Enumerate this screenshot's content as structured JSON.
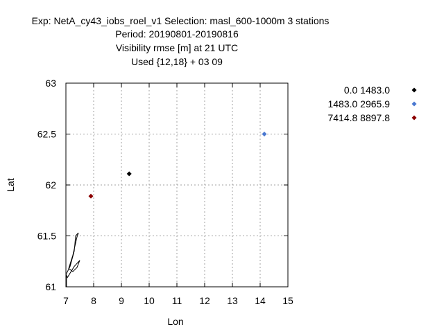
{
  "header": {
    "line1": "Exp: NetA_cy43_iobs_roel_v1   Selection: masl_600-1000m      3 stations",
    "line2": "Period: 20190801-20190816",
    "line3": "Visibility rmse [m] at  21 UTC",
    "line4": "Used {12,18} + 03 09"
  },
  "chart_data": {
    "type": "scatter",
    "title": "Visibility rmse [m] at  21 UTC",
    "xlabel": "Lon",
    "ylabel": "Lat",
    "xlim": [
      7,
      15
    ],
    "ylim": [
      61,
      63
    ],
    "xticks": [
      "7",
      "8",
      "9",
      "10",
      "11",
      "12",
      "13",
      "14",
      "15"
    ],
    "yticks": [
      "61",
      "61.5",
      "62",
      "62.5",
      "63"
    ],
    "grid": true,
    "legend_position": "right",
    "series": [
      {
        "name": "0.0 1483.0",
        "color": "#000000",
        "points": [
          [
            9.28,
            62.11
          ]
        ]
      },
      {
        "name": "1483.0 2965.9",
        "color": "#4a78d0",
        "points": [
          [
            14.15,
            62.5
          ]
        ]
      },
      {
        "name": "7414.8 8897.8",
        "color": "#8b0000",
        "points": [
          [
            7.9,
            61.89
          ]
        ]
      }
    ],
    "coastline": [
      [
        7.02,
        61.0
      ],
      [
        7.02,
        61.07
      ],
      [
        7.0,
        61.13
      ],
      [
        7.05,
        61.09
      ],
      [
        7.3,
        61.2
      ],
      [
        7.5,
        61.26
      ],
      [
        7.4,
        61.19
      ],
      [
        7.25,
        61.15
      ],
      [
        7.1,
        61.18
      ],
      [
        7.25,
        61.31
      ],
      [
        7.4,
        61.49
      ],
      [
        7.45,
        61.53
      ],
      [
        7.35,
        61.5
      ],
      [
        7.3,
        61.35
      ],
      [
        7.15,
        61.2
      ],
      [
        7.02,
        61.13
      ]
    ]
  }
}
